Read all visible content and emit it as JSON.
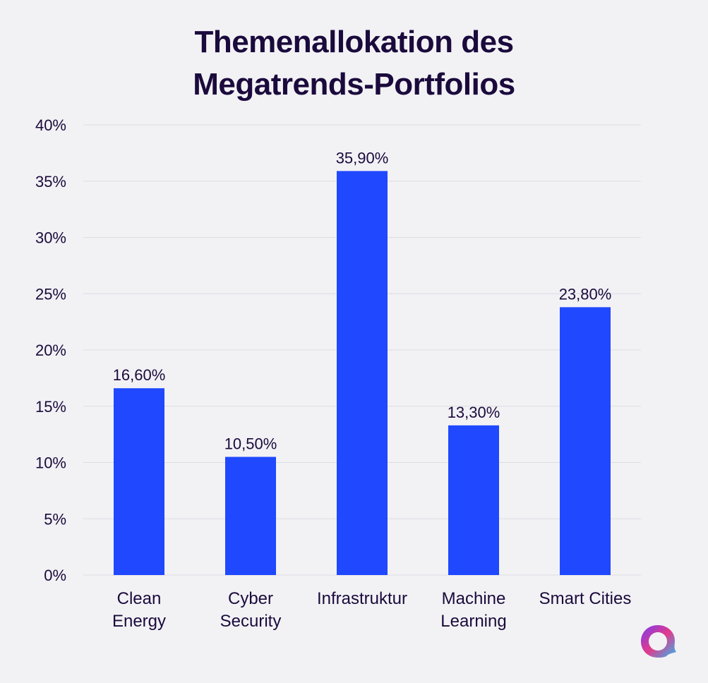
{
  "title_lines": [
    "Themenallokation des",
    "Megatrends-Portfolios"
  ],
  "colors": {
    "bar": "#1f48ff",
    "text": "#1b0a3c",
    "grid": "#dcdce3",
    "background": "#f2f2f5"
  },
  "chart_data": {
    "type": "bar",
    "title": "Themenallokation des Megatrends-Portfolios",
    "categories": [
      [
        "Clean",
        "Energy"
      ],
      [
        "Cyber",
        "Security"
      ],
      [
        "Infrastruktur"
      ],
      [
        "Machine",
        "Learning"
      ],
      [
        "Smart Cities"
      ]
    ],
    "values": [
      16.6,
      10.5,
      35.9,
      13.3,
      23.8
    ],
    "data_labels": [
      "16,60%",
      "10,50%",
      "35,90%",
      "13,30%",
      "23,80%"
    ],
    "ylim": [
      0,
      40
    ],
    "yticks": [
      0,
      5,
      10,
      15,
      20,
      25,
      30,
      35,
      40
    ],
    "ytick_labels": [
      "0%",
      "5%",
      "10%",
      "15%",
      "20%",
      "25%",
      "30%",
      "35%",
      "40%"
    ],
    "grid": true,
    "legend": "none"
  },
  "logo": {
    "icon": "brand-logo-icon"
  }
}
